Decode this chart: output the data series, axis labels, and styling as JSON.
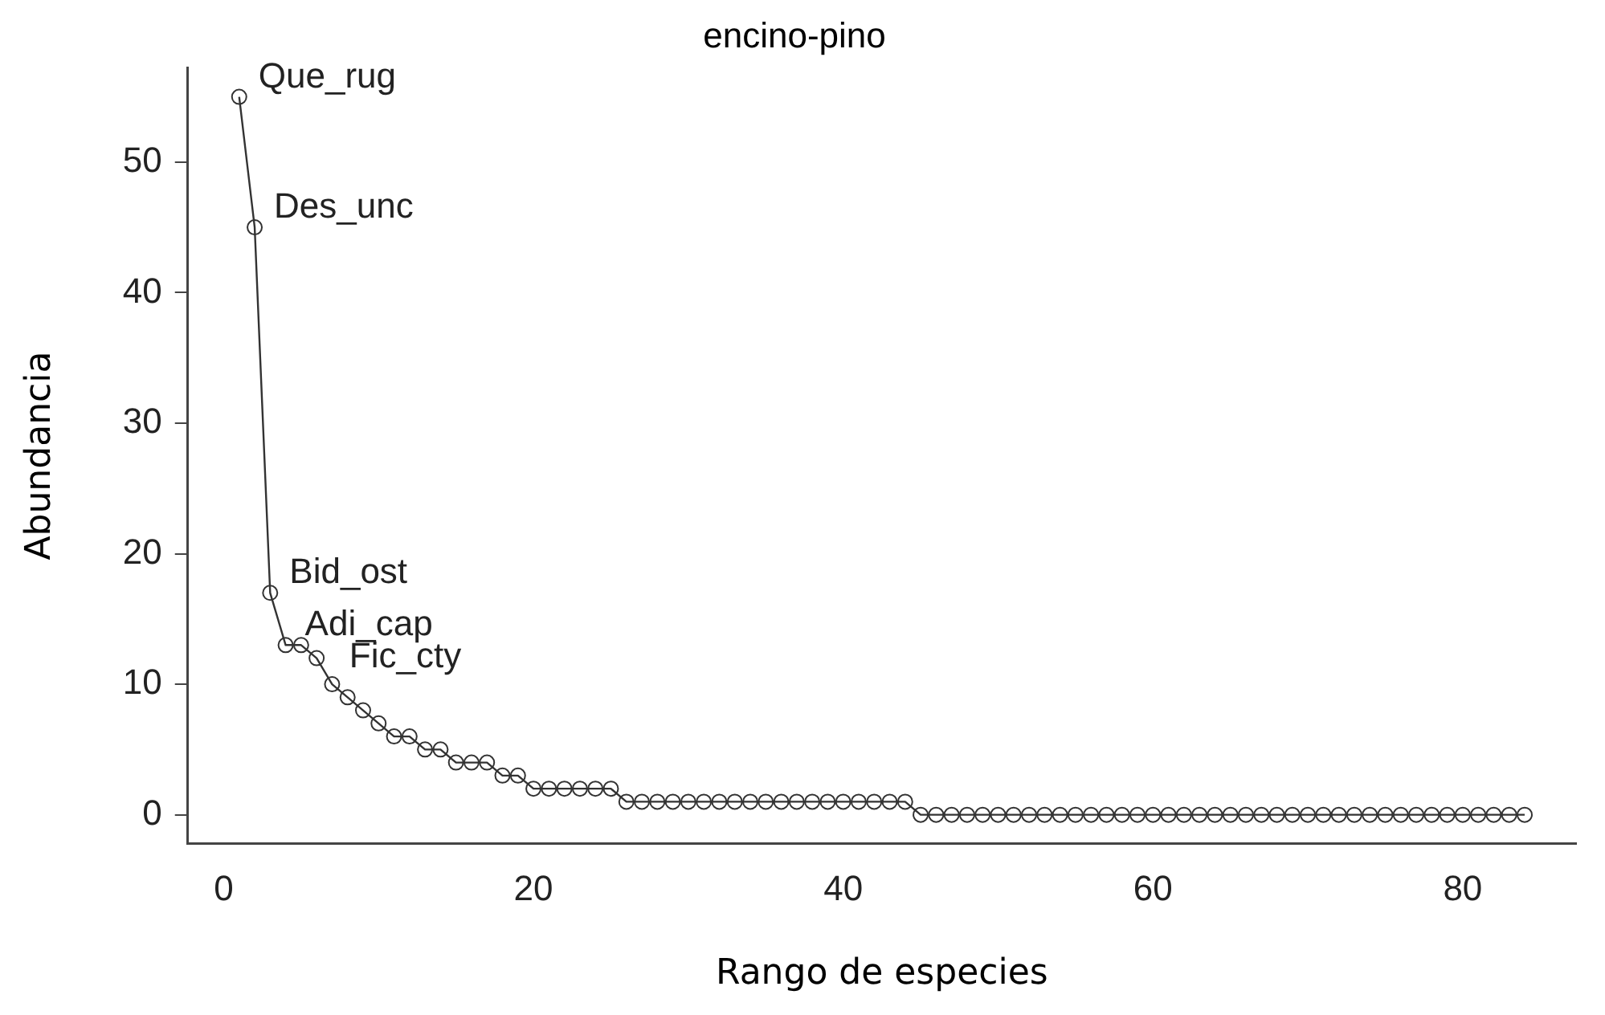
{
  "chart_data": {
    "type": "line",
    "title": "encino-pino",
    "xlabel": "Rango de especies",
    "ylabel": "Abundancia",
    "x": [
      1,
      2,
      3,
      4,
      5,
      6,
      7,
      8,
      9,
      10,
      11,
      12,
      13,
      14,
      15,
      16,
      17,
      18,
      19,
      20,
      21,
      22,
      23,
      24,
      25,
      26,
      27,
      28,
      29,
      30,
      31,
      32,
      33,
      34,
      35,
      36,
      37,
      38,
      39,
      40,
      41,
      42,
      43,
      44,
      45,
      46,
      47,
      48,
      49,
      50,
      51,
      52,
      53,
      54,
      55,
      56,
      57,
      58,
      59,
      60,
      61,
      62,
      63,
      64,
      65,
      66,
      67,
      68,
      69,
      70,
      71,
      72,
      73,
      74,
      75,
      76,
      77,
      78,
      79,
      80,
      81,
      82,
      83,
      84
    ],
    "series": [
      {
        "color": "#333333",
        "values": [
          55,
          45,
          17,
          13,
          13,
          12,
          10,
          9,
          8,
          7,
          6,
          6,
          5,
          5,
          4,
          4,
          4,
          3,
          3,
          2,
          2,
          2,
          2,
          2,
          2,
          1,
          1,
          1,
          1,
          1,
          1,
          1,
          1,
          1,
          1,
          1,
          1,
          1,
          1,
          1,
          1,
          1,
          1,
          1,
          0,
          0,
          0,
          0,
          0,
          0,
          0,
          0,
          0,
          0,
          0,
          0,
          0,
          0,
          0,
          0,
          0,
          0,
          0,
          0,
          0,
          0,
          0,
          0,
          0,
          0,
          0,
          0,
          0,
          0,
          0,
          0,
          0,
          0,
          0,
          0,
          0,
          0,
          0,
          0
        ]
      }
    ],
    "xlim": [
      -2.32,
      87.32
    ],
    "xticks": [
      0,
      20,
      40,
      60,
      80
    ],
    "ylim": [
      -2.2,
      57.2
    ],
    "yticks": [
      0,
      10,
      20,
      30,
      40,
      50
    ],
    "marker": "circle",
    "line_style": "solid",
    "grid": false,
    "legend": false,
    "annotations": [
      {
        "text": "Que_rug",
        "x": 1,
        "y": 55
      },
      {
        "text": "Des_unc",
        "x": 2,
        "y": 45
      },
      {
        "text": "Bid_ost",
        "x": 3,
        "y": 17
      },
      {
        "text": "Adi_cap",
        "x": 4,
        "y": 13
      },
      {
        "text": "Fic_cty",
        "x": 5,
        "y": 13
      }
    ]
  }
}
